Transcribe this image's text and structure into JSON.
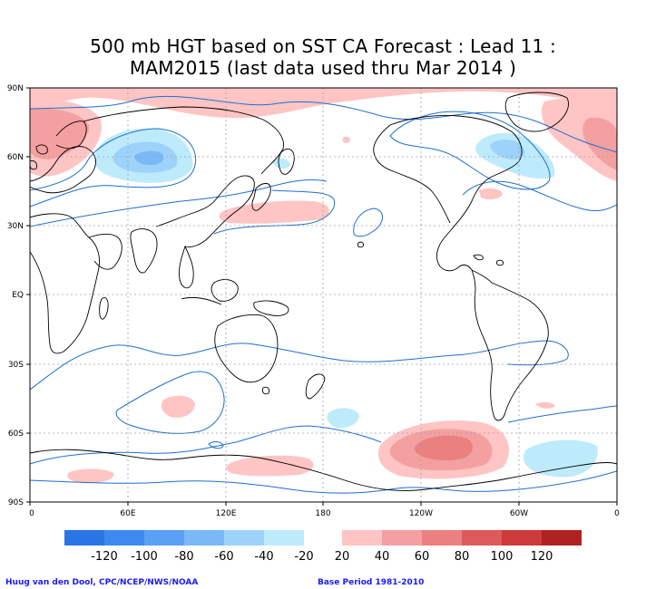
{
  "title": {
    "line1": "500 mb HGT based on SST CA Forecast : Lead 11 :",
    "line2": "MAM2015 (last data used thru Mar 2014 )"
  },
  "axes": {
    "lat_labels": [
      "90N",
      "60N",
      "30N",
      "EQ",
      "30S",
      "60S",
      "90S"
    ],
    "lon_labels": [
      "0",
      "60E",
      "120E",
      "180",
      "120W",
      "60W",
      "0"
    ]
  },
  "colorbar": {
    "negative_labels": [
      "-120",
      "-100",
      "-80",
      "-60",
      "-40",
      "-20"
    ],
    "positive_labels": [
      "20",
      "40",
      "60",
      "80",
      "100",
      "120"
    ],
    "negative_colors": [
      "#2a75e6",
      "#3c8af0",
      "#5aa0f5",
      "#7ab8f8",
      "#9dd3fa",
      "#bdebfc"
    ],
    "positive_colors": [
      "#ffc4c4",
      "#f5a0a0",
      "#eb8080",
      "#de5a5a",
      "#cc3a3a",
      "#b02222"
    ]
  },
  "footer": {
    "credit": "Huug van den Dool, CPC/NCEP/NWS/NOAA",
    "base_period": "Base Period 1981-2010"
  },
  "colors": {
    "contour_line": "#1f6fd0",
    "coastline": "#000000",
    "grid": "#a0a0a0",
    "footer_text": "#1a1aff"
  }
}
